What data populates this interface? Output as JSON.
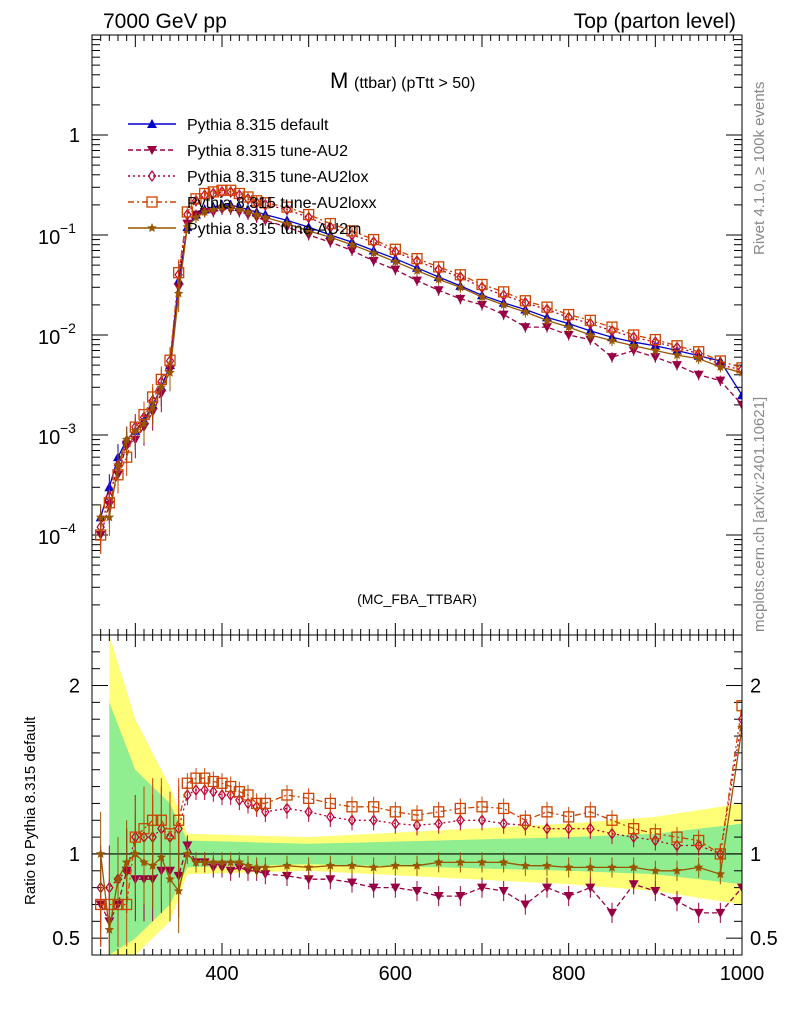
{
  "header": {
    "left": "7000 GeV pp",
    "right": "Top (parton level)"
  },
  "side_labels": {
    "rivet": "Rivet 4.1.0, ≥ 100k events",
    "mcplots": "mcplots.cern.ch [arXiv:2401.10621]"
  },
  "chart_data": {
    "type": "line",
    "title_main": "M",
    "title_sub": "(ttbar) (pTtt > 50)",
    "analysis_label": "(MC_FBA_TTBAR)",
    "xlabel": "",
    "ylabel_main": "",
    "ylabel_ratio": "Ratio to Pythia 8.315 default",
    "xlim": [
      250,
      1000
    ],
    "ylim_main": [
      1e-05,
      10
    ],
    "ylim_ratio": [
      0.4,
      2.3
    ],
    "y_scale_main": "log",
    "x_ticks": [
      400,
      600,
      800,
      1000
    ],
    "x_tick_labels": [
      "400",
      "600",
      "800",
      "1000"
    ],
    "y_ticks_main": [
      1,
      0.1,
      0.01,
      0.001,
      0.0001
    ],
    "y_tick_labels_main": [
      {
        "base": "1",
        "exp": ""
      },
      {
        "base": "10",
        "exp": "−1"
      },
      {
        "base": "10",
        "exp": "−2"
      },
      {
        "base": "10",
        "exp": "−3"
      },
      {
        "base": "10",
        "exp": "−4"
      }
    ],
    "y_ticks_ratio": [
      2,
      1,
      0.5
    ],
    "y_tick_labels_ratio": [
      "2",
      "1",
      "0.5"
    ],
    "legend": [
      {
        "name": "Pythia 8.315 default",
        "color": "#0000cc",
        "marker": "triangle-up",
        "dash": ""
      },
      {
        "name": "Pythia 8.315 tune-AU2",
        "color": "#990044",
        "marker": "triangle-down",
        "dash": "5,3"
      },
      {
        "name": "Pythia 8.315 tune-AU2lox",
        "color": "#bb0033",
        "marker": "diamond-open",
        "dash": "2,3"
      },
      {
        "name": "Pythia 8.315 tune-AU2loxx",
        "color": "#cc4400",
        "marker": "square-open",
        "dash": "6,3,2,3"
      },
      {
        "name": "Pythia 8.315 tune-AU2m",
        "color": "#995500",
        "marker": "star",
        "dash": ""
      }
    ],
    "x": [
      260,
      270,
      280,
      290,
      300,
      310,
      320,
      330,
      340,
      350,
      360,
      370,
      380,
      390,
      400,
      410,
      420,
      430,
      440,
      450,
      475,
      500,
      525,
      550,
      575,
      600,
      625,
      650,
      675,
      700,
      725,
      750,
      775,
      800,
      825,
      850,
      875,
      900,
      925,
      950,
      975,
      1000
    ],
    "series": [
      {
        "name": "Pythia 8.315 default",
        "values": [
          0.00015,
          0.0003,
          0.0006,
          0.0009,
          0.0011,
          0.0014,
          0.002,
          0.003,
          0.005,
          0.035,
          0.12,
          0.16,
          0.18,
          0.19,
          0.2,
          0.2,
          0.19,
          0.18,
          0.17,
          0.16,
          0.14,
          0.12,
          0.1,
          0.085,
          0.07,
          0.058,
          0.047,
          0.038,
          0.031,
          0.025,
          0.021,
          0.018,
          0.015,
          0.013,
          0.011,
          0.0095,
          0.0085,
          0.0078,
          0.007,
          0.0062,
          0.0055,
          0.0025
        ]
      },
      {
        "name": "Pythia 8.315 tune-AU2",
        "values": [
          0.0001,
          0.0002,
          0.0004,
          0.0008,
          0.0009,
          0.0012,
          0.0017,
          0.0026,
          0.0045,
          0.03,
          0.13,
          0.16,
          0.17,
          0.17,
          0.18,
          0.18,
          0.17,
          0.16,
          0.15,
          0.14,
          0.12,
          0.1,
          0.085,
          0.07,
          0.055,
          0.045,
          0.035,
          0.028,
          0.023,
          0.02,
          0.016,
          0.012,
          0.012,
          0.01,
          0.009,
          0.006,
          0.007,
          0.006,
          0.005,
          0.004,
          0.0035,
          0.002
        ]
      },
      {
        "name": "Pythia 8.315 tune-AU2lox",
        "values": [
          0.00012,
          0.00024,
          0.0005,
          0.0008,
          0.0012,
          0.0015,
          0.0022,
          0.0034,
          0.0055,
          0.04,
          0.16,
          0.22,
          0.25,
          0.26,
          0.27,
          0.27,
          0.25,
          0.23,
          0.21,
          0.2,
          0.18,
          0.15,
          0.12,
          0.1,
          0.085,
          0.068,
          0.055,
          0.045,
          0.038,
          0.03,
          0.025,
          0.021,
          0.018,
          0.015,
          0.013,
          0.011,
          0.0095,
          0.0085,
          0.0075,
          0.0065,
          0.005,
          0.0045
        ]
      },
      {
        "name": "Pythia 8.315 tune-AU2loxx",
        "values": [
          0.0001,
          0.00021,
          0.0004,
          0.0006,
          0.0012,
          0.0016,
          0.0024,
          0.0036,
          0.0056,
          0.042,
          0.17,
          0.23,
          0.26,
          0.27,
          0.28,
          0.28,
          0.26,
          0.24,
          0.22,
          0.21,
          0.19,
          0.16,
          0.13,
          0.11,
          0.09,
          0.072,
          0.058,
          0.048,
          0.04,
          0.032,
          0.027,
          0.022,
          0.019,
          0.016,
          0.014,
          0.012,
          0.01,
          0.009,
          0.0078,
          0.0068,
          0.0055,
          0.0047
        ]
      },
      {
        "name": "Pythia 8.315 tune-AU2m",
        "values": [
          0.00015,
          0.00015,
          0.0005,
          0.0009,
          0.0011,
          0.0013,
          0.0019,
          0.003,
          0.0042,
          0.026,
          0.12,
          0.15,
          0.17,
          0.18,
          0.19,
          0.19,
          0.18,
          0.17,
          0.16,
          0.15,
          0.13,
          0.11,
          0.095,
          0.08,
          0.066,
          0.054,
          0.044,
          0.036,
          0.03,
          0.024,
          0.02,
          0.017,
          0.014,
          0.012,
          0.01,
          0.0088,
          0.0078,
          0.007,
          0.0063,
          0.0058,
          0.0048,
          0.0042
        ]
      }
    ],
    "ratio_series": [
      {
        "name": "Pythia 8.315 tune-AU2",
        "values": [
          0.7,
          0.6,
          0.7,
          0.9,
          0.85,
          0.85,
          0.85,
          0.9,
          0.9,
          0.87,
          1.05,
          0.95,
          0.95,
          0.92,
          0.92,
          0.9,
          0.92,
          0.9,
          0.9,
          0.88,
          0.87,
          0.85,
          0.85,
          0.83,
          0.8,
          0.8,
          0.78,
          0.75,
          0.75,
          0.8,
          0.78,
          0.7,
          0.8,
          0.75,
          0.8,
          0.65,
          0.82,
          0.78,
          0.72,
          0.65,
          0.65,
          0.8
        ]
      },
      {
        "name": "Pythia 8.315 tune-AU2lox",
        "values": [
          0.8,
          0.8,
          0.85,
          0.9,
          1.1,
          1.1,
          1.1,
          1.15,
          1.1,
          1.15,
          1.35,
          1.38,
          1.38,
          1.37,
          1.35,
          1.35,
          1.32,
          1.3,
          1.28,
          1.25,
          1.27,
          1.25,
          1.22,
          1.2,
          1.2,
          1.18,
          1.17,
          1.18,
          1.2,
          1.2,
          1.18,
          1.17,
          1.15,
          1.15,
          1.15,
          1.12,
          1.1,
          1.08,
          1.05,
          1.05,
          1.0,
          1.8
        ]
      },
      {
        "name": "Pythia 8.315 tune-AU2loxx",
        "values": [
          0.7,
          0.7,
          0.7,
          0.7,
          1.1,
          1.15,
          1.2,
          1.2,
          1.12,
          1.2,
          1.42,
          1.45,
          1.45,
          1.43,
          1.42,
          1.4,
          1.37,
          1.35,
          1.3,
          1.3,
          1.35,
          1.33,
          1.3,
          1.28,
          1.28,
          1.25,
          1.23,
          1.25,
          1.27,
          1.28,
          1.27,
          1.2,
          1.25,
          1.22,
          1.25,
          1.2,
          1.15,
          1.12,
          1.1,
          1.08,
          1.0,
          1.88
        ]
      },
      {
        "name": "Pythia 8.315 tune-AU2m",
        "values": [
          1.0,
          0.55,
          0.85,
          0.95,
          1.0,
          0.95,
          0.93,
          0.98,
          0.85,
          0.78,
          1.0,
          0.95,
          0.95,
          0.95,
          0.95,
          0.95,
          0.95,
          0.93,
          0.92,
          0.92,
          0.93,
          0.92,
          0.93,
          0.93,
          0.92,
          0.93,
          0.93,
          0.95,
          0.95,
          0.95,
          0.95,
          0.93,
          0.93,
          0.92,
          0.92,
          0.92,
          0.92,
          0.9,
          0.9,
          0.92,
          0.88,
          1.75
        ]
      }
    ],
    "band_inner": [
      {
        "x": 270,
        "half": 0.9
      },
      {
        "x": 300,
        "half": 0.5
      },
      {
        "x": 340,
        "half": 0.3
      },
      {
        "x": 360,
        "half": 0.08
      },
      {
        "x": 500,
        "half": 0.06
      },
      {
        "x": 650,
        "half": 0.08
      },
      {
        "x": 800,
        "half": 0.1
      },
      {
        "x": 900,
        "half": 0.12
      },
      {
        "x": 1000,
        "half": 0.18
      }
    ],
    "band_outer": [
      {
        "x": 270,
        "half": 1.3
      },
      {
        "x": 300,
        "half": 0.8
      },
      {
        "x": 340,
        "half": 0.4
      },
      {
        "x": 360,
        "half": 0.12
      },
      {
        "x": 500,
        "half": 0.1
      },
      {
        "x": 650,
        "half": 0.14
      },
      {
        "x": 800,
        "half": 0.18
      },
      {
        "x": 900,
        "half": 0.22
      },
      {
        "x": 1000,
        "half": 0.3
      }
    ],
    "band_colors": {
      "inner": "#90ee90",
      "outer": "#ffff77"
    }
  }
}
